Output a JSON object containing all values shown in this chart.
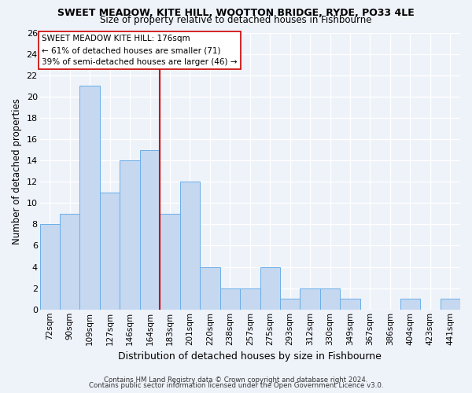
{
  "title": "SWEET MEADOW, KITE HILL, WOOTTON BRIDGE, RYDE, PO33 4LE",
  "subtitle": "Size of property relative to detached houses in Fishbourne",
  "xlabel": "Distribution of detached houses by size in Fishbourne",
  "ylabel": "Number of detached properties",
  "categories": [
    "72sqm",
    "90sqm",
    "109sqm",
    "127sqm",
    "146sqm",
    "164sqm",
    "183sqm",
    "201sqm",
    "220sqm",
    "238sqm",
    "257sqm",
    "275sqm",
    "293sqm",
    "312sqm",
    "330sqm",
    "349sqm",
    "367sqm",
    "386sqm",
    "404sqm",
    "423sqm",
    "441sqm"
  ],
  "values": [
    8,
    9,
    21,
    11,
    14,
    15,
    9,
    12,
    4,
    2,
    2,
    4,
    1,
    2,
    2,
    1,
    0,
    0,
    1,
    0,
    1
  ],
  "bar_color": "#c5d8f0",
  "bar_edge_color": "#6aaee8",
  "ref_line_x": 5.5,
  "ref_line_color": "#cc0000",
  "ylim": [
    0,
    26
  ],
  "yticks": [
    0,
    2,
    4,
    6,
    8,
    10,
    12,
    14,
    16,
    18,
    20,
    22,
    24,
    26
  ],
  "annotation_title": "SWEET MEADOW KITE HILL: 176sqm",
  "annotation_line1": "← 61% of detached houses are smaller (71)",
  "annotation_line2": "39% of semi-detached houses are larger (46) →",
  "footer_line1": "Contains HM Land Registry data © Crown copyright and database right 2024.",
  "footer_line2": "Contains public sector information licensed under the Open Government Licence v3.0.",
  "bg_color": "#eef2f9",
  "plot_bg_color": "#eef2f9",
  "grid_color": "#ffffff",
  "ann_box_color": "#ffffff",
  "ann_border_color": "#cc0000"
}
